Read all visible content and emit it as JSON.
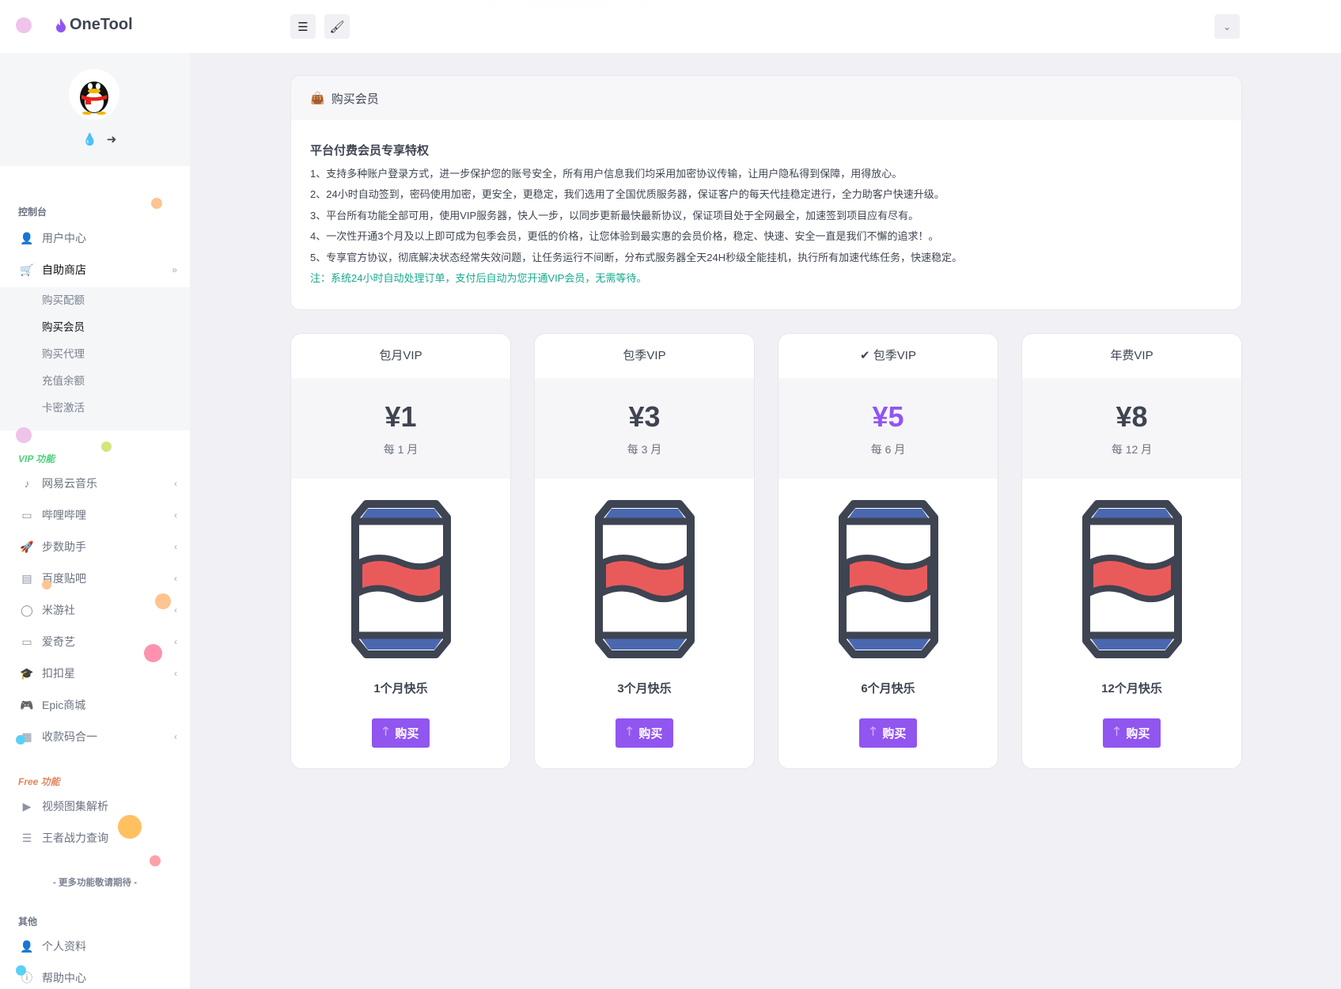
{
  "header": {
    "brand": "OneTool",
    "menu_icon": "bars-icon",
    "theme_icon": "brush-icon",
    "user_dropdown_icon": "chevron-down-icon"
  },
  "sidebar": {
    "profile_icons": [
      "fire-icon",
      "sign-out-icon"
    ],
    "sections": [
      {
        "title": "控制台",
        "items": [
          {
            "label": "用户中心",
            "icon": "user-icon"
          },
          {
            "label": "自助商店",
            "icon": "cart-icon",
            "active": true
          }
        ]
      },
      {
        "title": "VIP 功能",
        "color": "#4cd07d",
        "items": [
          {
            "label": "网易云音乐"
          },
          {
            "label": "哔哩哔哩"
          },
          {
            "label": "步数助手"
          },
          {
            "label": "百度贴吧"
          },
          {
            "label": "米游社"
          },
          {
            "label": "爱奇艺"
          },
          {
            "label": "扣扣星"
          },
          {
            "label": "Epic商城"
          },
          {
            "label": "收款码合一"
          }
        ]
      },
      {
        "title": "Free 功能",
        "color": "#e0855e",
        "items": [
          {
            "label": "视频图集解析"
          },
          {
            "label": "王者战力查询"
          }
        ]
      },
      {
        "title": "其他",
        "items": [
          {
            "label": "个人资料"
          },
          {
            "label": "帮助中心"
          }
        ]
      }
    ],
    "submenu": [
      "购买配额",
      "购买会员",
      "购买代理",
      "充值余额",
      "卡密激活"
    ],
    "submenu_active": "购买会员",
    "more": "- 更多功能敬请期待 -"
  },
  "main": {
    "title": "购买会员",
    "heading": "平台付费会员专享特权",
    "lines": [
      "1、支持多种账户登录方式，进一步保护您的账号安全，所有用户信息我们均采用加密协议传输，让用户隐私得到保障，用得放心。",
      "2、24小时自动签到，密码使用加密，更安全，更稳定，我们选用了全国优质服务器，保证客户的每天代挂稳定进行，全力助客户快速升级。",
      "3、平台所有功能全部可用，使用VIP服务器，快人一步，以同步更新最快最新协议，保证项目处于全网最全，加速签到项目应有尽有。",
      "4、一次性开通3个月及以上即可成为包季会员，更低的价格，让您体验到最实惠的会员价格，稳定、快速、安全一直是我们不懈的追求！。",
      "5、专享官方协议，彻底解决状态经常失效问题，让任务运行不间断，分布式服务器全天24H秒级全能挂机，执行所有加速代练任务，快速稳定。"
    ],
    "note": "注：系统24小时自动处理订单，支付后自动为您开通VIP会员，无需等待。"
  },
  "plans": [
    {
      "title": "包月VIP",
      "price": "¥1",
      "period": "每 1 月",
      "caption": "1个月快乐",
      "button": "购买"
    },
    {
      "title": "包季VIP",
      "price": "¥3",
      "period": "每 3 月",
      "caption": "3个月快乐",
      "button": "购买"
    },
    {
      "title": "包季VIP",
      "selected": true,
      "price": "¥5",
      "period": "每 6 月",
      "caption": "6个月快乐",
      "button": "购买"
    },
    {
      "title": "年费VIP",
      "price": "¥8",
      "period": "每 12 月",
      "caption": "12个月快乐",
      "button": "购买"
    }
  ],
  "colors": {
    "accent": "#9155f0",
    "note": "#16a98b",
    "can_blue": "#4a67b0",
    "can_red": "#e95b5b",
    "can_outline": "#3e4451"
  }
}
